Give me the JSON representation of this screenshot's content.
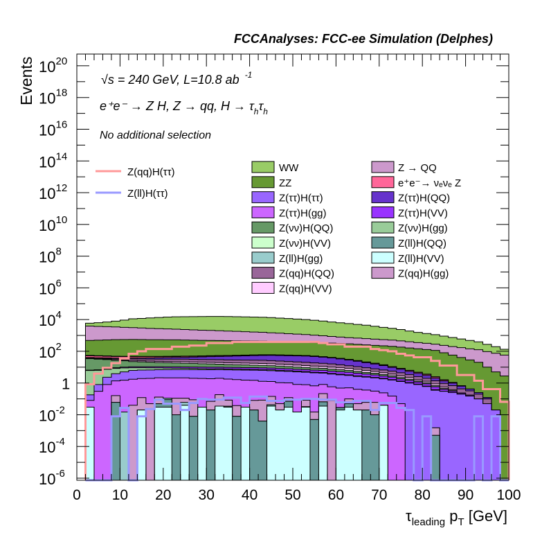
{
  "header": {
    "title": "FCCAnalyses: FCC-ee Simulation (Delphes)",
    "energy_line": "√s = 240 GeV, L=10.8 ab",
    "energy_exp": "-1",
    "process_parts": [
      "e⁺e⁻ → Z H, Z  → qq, H  → τ",
      "h",
      "τ",
      "h"
    ],
    "selection": "No additional selection"
  },
  "chart_data": {
    "type": "bar",
    "subtype": "stacked-histogram-log",
    "title": "FCCAnalyses: FCC-ee Simulation (Delphes)",
    "xlabel": {
      "main1": "τ",
      "sub1": "leading",
      "main2": " p",
      "sub2": "T",
      "unit": " [GeV]"
    },
    "ylabel": "Events",
    "xlim": [
      0,
      100
    ],
    "ylim_log10": [
      -6.13,
      20.74
    ],
    "yscale": "log",
    "bin_start": 2,
    "bin_width": 2,
    "xticks": [
      "0",
      "10",
      "20",
      "30",
      "40",
      "50",
      "60",
      "70",
      "80",
      "90",
      "100"
    ],
    "yticks": [
      {
        "base": "10",
        "exp": "20",
        "log": 20
      },
      {
        "base": "10",
        "exp": "18",
        "log": 18
      },
      {
        "base": "10",
        "exp": "16",
        "log": 16
      },
      {
        "base": "10",
        "exp": "14",
        "log": 14
      },
      {
        "base": "10",
        "exp": "12",
        "log": 12
      },
      {
        "base": "10",
        "exp": "10",
        "log": 10
      },
      {
        "base": "10",
        "exp": "8",
        "log": 8
      },
      {
        "base": "10",
        "exp": "6",
        "log": 6
      },
      {
        "base": "10",
        "exp": "4",
        "log": 4
      },
      {
        "base": "10",
        "exp": "2",
        "log": 2
      },
      {
        "base": "1",
        "exp": "",
        "log": 0
      },
      {
        "base": "10",
        "exp": "-2",
        "log": -2
      },
      {
        "base": "10",
        "exp": "-4",
        "log": -4
      },
      {
        "base": "10",
        "exp": "-6",
        "log": -6
      }
    ],
    "stack": [
      {
        "name": "Z(ll)H(VV)",
        "color": "#ccffff",
        "values": [
          0.03,
          0,
          0,
          0,
          0,
          0,
          0.02,
          0,
          0.03,
          0.03,
          0,
          0.04,
          0,
          0.03,
          0,
          0.035,
          0.03,
          0,
          0.03,
          0,
          0,
          0.035,
          0.02,
          0.03,
          0.015,
          0.03,
          0,
          0.035,
          0,
          0.02,
          0.03,
          0.02,
          0,
          0,
          0.04,
          0,
          0,
          0,
          0,
          0,
          0,
          0,
          0,
          0,
          0,
          0,
          0,
          0,
          0
        ]
      },
      {
        "name": "Z(ll)H(QQ)",
        "color": "#669999",
        "values": [
          0,
          0,
          0,
          0.06,
          0,
          0,
          0,
          0,
          0.02,
          0.06,
          0.01,
          0,
          0.008,
          0,
          0.02,
          0,
          0.004,
          0.008,
          0,
          0.02,
          0.004,
          0.008,
          0,
          0.04,
          0,
          0.002,
          0.005,
          0.03,
          0,
          0.008,
          0.02,
          0,
          0.02,
          0.01,
          0,
          0,
          0,
          0,
          0,
          0,
          0.0005,
          0,
          0,
          0,
          0,
          0,
          0,
          0,
          0
        ]
      },
      {
        "name": "Z(ll)H(gg)",
        "color": "#99cccc",
        "values": [
          0,
          0,
          0,
          0,
          0.015,
          0,
          0,
          0,
          0,
          0.02,
          0,
          0.02,
          0,
          0,
          0,
          0,
          0,
          0,
          0,
          0,
          0,
          0,
          0,
          0,
          0,
          0,
          0,
          0,
          0,
          0,
          0,
          0,
          0,
          0,
          0,
          0,
          0,
          0,
          0,
          0,
          0,
          0,
          0,
          0,
          0,
          0,
          0,
          0,
          0
        ]
      },
      {
        "name": "Z(qq)H(gg)",
        "color": "#cc99cc",
        "values": [
          0,
          0,
          0,
          0.1,
          0,
          0.04,
          0.1,
          0.05,
          0.08,
          0,
          0.1,
          0.05,
          0.08,
          0,
          0.05,
          0.15,
          0.05,
          0.03,
          0,
          0.06,
          0.08,
          0.1,
          0.03,
          0.05,
          0,
          0.05,
          0.01,
          0.15,
          0.08,
          0,
          0.05,
          0.03,
          0.04,
          0.05,
          0,
          0,
          0,
          0,
          0,
          0,
          0.001,
          0,
          0,
          0,
          0,
          0,
          0,
          0,
          0
        ]
      },
      {
        "name": "Z(ττ)H(gg)",
        "color": "#cc66ff",
        "values": [
          0.05,
          0.3,
          0.8,
          1.2,
          1.5,
          1.7,
          1.8,
          1.9,
          2,
          2,
          2,
          2,
          1.9,
          1.9,
          1.8,
          1.8,
          1.7,
          1.6,
          1.5,
          1.4,
          1.2,
          1.1,
          1,
          0.9,
          0.8,
          0.7,
          0.65,
          0.6,
          0.5,
          0.45,
          0.4,
          0.35,
          0.3,
          0.25,
          0.2,
          0.15,
          0.05,
          0,
          0,
          0,
          0,
          0,
          0,
          0,
          0,
          0,
          0,
          0,
          0
        ]
      },
      {
        "name": "Z(ττ)H(ττ)",
        "color": "#9966ff",
        "values": [
          0.1,
          0.5,
          1.5,
          2.5,
          3.5,
          4.5,
          4.6,
          4.7,
          4.8,
          4.9,
          5,
          5,
          5,
          5,
          5,
          5,
          5,
          5,
          5,
          5,
          5,
          4.8,
          4.6,
          4.4,
          4.2,
          4,
          3.7,
          3.4,
          3.1,
          2.8,
          2.5,
          2.2,
          2,
          1.8,
          1.6,
          1.4,
          1.2,
          1,
          0.8,
          0.6,
          0.35,
          0.3,
          0.25,
          0.2,
          0.15,
          0.1,
          0.05,
          0.02,
          0
        ]
      },
      {
        "name": "Z(νν)H(gg)",
        "color": "#99cc99",
        "values": [
          6,
          5.5,
          5,
          4.5,
          4,
          3,
          2.7,
          2.4,
          2.1,
          1.8,
          1.5,
          1.4,
          1.3,
          1.2,
          1.1,
          1,
          0.95,
          0.9,
          0.85,
          0.8,
          0.8,
          0.75,
          0.7,
          0.6,
          0.55,
          0.5,
          0.45,
          0.4,
          0.35,
          0.3,
          0.3,
          0.25,
          0.2,
          0.15,
          0.12,
          0.1,
          0.08,
          0.06,
          0.05,
          0.04,
          0.03,
          0,
          0,
          0,
          0,
          0,
          0,
          0,
          0
        ]
      },
      {
        "name": "Z(ττ)H(VV)",
        "color": "#9933ff",
        "values": [
          0.3,
          0.5,
          0.7,
          0.9,
          1.1,
          1.3,
          1.4,
          1.5,
          1.6,
          1.7,
          1.8,
          1.8,
          1.9,
          1.9,
          2,
          2,
          2,
          2,
          2,
          2,
          2,
          2,
          1.9,
          1.9,
          1.8,
          1.8,
          1.7,
          1.7,
          1.6,
          1.6,
          1.5,
          1.3,
          1.1,
          1,
          0.8,
          0.7,
          0.5,
          0.4,
          0.3,
          0.25,
          0.2,
          0.1,
          0.05,
          0.03,
          0.02,
          0,
          0,
          0,
          0
        ]
      },
      {
        "name": "Z(νν)H(QQ)",
        "color": "#669966",
        "values": [
          28,
          25,
          22,
          18,
          15,
          12,
          11,
          10,
          9,
          8.5,
          8,
          7.5,
          7,
          6.5,
          6,
          5.5,
          5,
          4.8,
          4.5,
          4.2,
          4,
          3.7,
          3.4,
          3.1,
          2.8,
          2.5,
          2.3,
          2.1,
          1.9,
          1.7,
          1.5,
          1.3,
          1.1,
          0.9,
          0.7,
          0.5,
          0.4,
          0.3,
          0.2,
          0.15,
          0.1,
          0.05,
          0.03,
          0,
          0,
          0,
          0,
          0,
          0
        ]
      },
      {
        "name": "Z(qq)H(VV)",
        "color": "#ffccff",
        "values": [
          2,
          2.3,
          2.6,
          2.9,
          3.2,
          3.5,
          3.6,
          3.7,
          3.8,
          3.9,
          4,
          4,
          4,
          4,
          4,
          4,
          4,
          4,
          4,
          4,
          4,
          3.8,
          3.6,
          3.4,
          3.2,
          3,
          2.8,
          2.6,
          2.4,
          2.2,
          2,
          1.8,
          1.5,
          1.2,
          1,
          0.8,
          0.6,
          0.5,
          0.3,
          0.25,
          0.2,
          0.1,
          0.05,
          0,
          0,
          0,
          0,
          0,
          0
        ]
      },
      {
        "name": "Z(qq)H(QQ)",
        "color": "#996699",
        "values": [
          3,
          3.5,
          4,
          5,
          6,
          7,
          7.5,
          8,
          8.5,
          9,
          9.5,
          10,
          10,
          10,
          10,
          10,
          10,
          10,
          10,
          10,
          10,
          9.5,
          9,
          8.5,
          8,
          7.5,
          7,
          6.5,
          6,
          5,
          4,
          3.5,
          3,
          2.5,
          2.2,
          2,
          1.6,
          1.2,
          0.9,
          0.7,
          0.5,
          0.4,
          0.3,
          0.2,
          0.15,
          0.1,
          0.05,
          0,
          0
        ]
      },
      {
        "name": "Z(ττ)H(QQ)",
        "color": "#6633cc",
        "values": [
          1,
          1.5,
          2,
          2.5,
          3,
          4,
          5,
          6,
          7,
          8,
          9,
          10,
          12,
          14,
          16,
          18,
          20,
          22,
          24,
          26,
          28,
          30,
          30,
          30,
          30,
          30,
          28,
          25,
          22,
          19,
          16,
          13,
          10,
          8,
          6,
          4,
          3,
          2,
          1.5,
          1,
          0.6,
          0.4,
          0.3,
          0.2,
          0.1,
          0.05,
          0.02,
          0,
          0
        ]
      },
      {
        "name": "e⁺e⁻→ νₑνₑ Z",
        "color": "#ff6699",
        "values": [
          12,
          11,
          10,
          9,
          8.5,
          8,
          7.5,
          7,
          6.5,
          6.2,
          6,
          5.8,
          5.5,
          5.2,
          5,
          4.8,
          4.6,
          4.4,
          4.2,
          4.1,
          4,
          3.8,
          3.6,
          3.4,
          3.2,
          3,
          2.8,
          2.6,
          2.4,
          2.2,
          2,
          1.8,
          1.6,
          1.4,
          1.2,
          1,
          0.8,
          0.7,
          0.6,
          0.5,
          0.4,
          0.2,
          0.1,
          0.05,
          0,
          0,
          0,
          0,
          0
        ]
      },
      {
        "name": "Z(νν)H(VV)",
        "color": "#ccffcc",
        "values": [
          3,
          2.9,
          2.8,
          2.7,
          2.6,
          2.5,
          2.4,
          2.3,
          2.2,
          2.1,
          2,
          1.95,
          1.9,
          1.85,
          1.8,
          1.75,
          1.7,
          1.65,
          1.6,
          1.55,
          1.5,
          1.4,
          1.3,
          1.2,
          1.1,
          1,
          0.9,
          0.8,
          0.7,
          0.6,
          0.5,
          0.45,
          0.4,
          0.35,
          0.3,
          0.25,
          0.2,
          0.18,
          0.15,
          0.12,
          0.1,
          0.05,
          0,
          0,
          0,
          0,
          0,
          0,
          0
        ]
      },
      {
        "name": "ZZ",
        "color": "#669933",
        "values": [
          430,
          450,
          470,
          490,
          500,
          510,
          500,
          490,
          485,
          480,
          477,
          465,
          450,
          440,
          430,
          422,
          410,
          400,
          390,
          385,
          376,
          360,
          345,
          330,
          320,
          315,
          305,
          295,
          285,
          275,
          266,
          250,
          235,
          220,
          208,
          196,
          175,
          155,
          140,
          125,
          111,
          80,
          57,
          40,
          28,
          20,
          10,
          5,
          2.8
        ]
      },
      {
        "name": "Z → QQ",
        "color": "#cc99cc",
        "values": [
          3400,
          3200,
          3050,
          2900,
          2700,
          2560,
          2400,
          2250,
          2150,
          2050,
          1950,
          1850,
          1750,
          1650,
          1600,
          1500,
          1420,
          1350,
          1280,
          1200,
          1140,
          1050,
          980,
          900,
          830,
          770,
          690,
          610,
          540,
          480,
          430,
          400,
          370,
          350,
          320,
          300,
          270,
          240,
          210,
          190,
          170,
          155,
          140,
          130,
          115,
          106,
          85,
          70,
          55
        ]
      },
      {
        "name": "WW",
        "color": "#99cc66",
        "values": [
          2000,
          2650,
          3500,
          4600,
          6100,
          8100,
          8800,
          9900,
          10800,
          11800,
          12600,
          12800,
          13100,
          13400,
          13600,
          13800,
          13600,
          13300,
          13000,
          12800,
          12500,
          11900,
          11000,
          10300,
          9600,
          8900,
          8000,
          7100,
          6200,
          5500,
          4900,
          4300,
          3800,
          3200,
          2700,
          2300,
          1900,
          1500,
          1200,
          1000,
          840,
          670,
          540,
          430,
          340,
          270,
          180,
          120,
          77
        ]
      }
    ],
    "lines": [
      {
        "name": "Z(qq)H(ττ)",
        "color": "#ff9999",
        "values": [
          0.83,
          3.9,
          9.1,
          18,
          35,
          70,
          100,
          140,
          140,
          140,
          195,
          195,
          230,
          230,
          330,
          330,
          330,
          390,
          390,
          390,
          390,
          390,
          390,
          390,
          390,
          390,
          390,
          330,
          275,
          275,
          195,
          195,
          195,
          140,
          118,
          100,
          70,
          55,
          42,
          42,
          25,
          12.6,
          12.6,
          3.2,
          3.2,
          1.4,
          0.41,
          0.41,
          0.065
        ]
      },
      {
        "name": "Z(ll)H(ττ)",
        "color": "#9999ff",
        "values": [
          0,
          0,
          0,
          0.008,
          0.027,
          0,
          0.008,
          0.023,
          0.09,
          0.05,
          0.05,
          0.02,
          0.055,
          0.1,
          0.09,
          0.09,
          0.12,
          0.12,
          0.055,
          0.14,
          0.14,
          0.075,
          0.075,
          0.09,
          0.09,
          0.1,
          0.1,
          0.09,
          0.09,
          0.06,
          0.06,
          0.075,
          0.075,
          0.02,
          0.055,
          0.055,
          0.027,
          0.02,
          0,
          0.008,
          0,
          0,
          0,
          0,
          0,
          0.008,
          0,
          0.008,
          0
        ]
      }
    ]
  },
  "legend": {
    "lines": [
      {
        "label": "Z(qq)H(ττ)",
        "color": "#ff9999"
      },
      {
        "label": "Z(ll)H(ττ)",
        "color": "#9999ff"
      }
    ],
    "col1": [
      {
        "label": "WW",
        "color": "#99cc66"
      },
      {
        "label": "ZZ",
        "color": "#669933"
      },
      {
        "label": "Z(ττ)H(ττ)",
        "color": "#9966ff"
      },
      {
        "label": "Z(ττ)H(gg)",
        "color": "#cc66ff"
      },
      {
        "label": "Z(νν)H(QQ)",
        "color": "#669966"
      },
      {
        "label": "Z(νν)H(VV)",
        "color": "#ccffcc"
      },
      {
        "label": "Z(ll)H(gg)",
        "color": "#99cccc"
      },
      {
        "label": "Z(qq)H(QQ)",
        "color": "#996699"
      },
      {
        "label": "Z(qq)H(VV)",
        "color": "#ffccff"
      }
    ],
    "col2": [
      {
        "label": "Z → QQ",
        "color": "#cc99cc"
      },
      {
        "label": "e⁺e⁻→ νₑνₑ Z",
        "color": "#ff6699"
      },
      {
        "label": "Z(ττ)H(QQ)",
        "color": "#6633cc"
      },
      {
        "label": "Z(ττ)H(VV)",
        "color": "#9933ff"
      },
      {
        "label": "Z(νν)H(gg)",
        "color": "#99cc99"
      },
      {
        "label": "Z(ll)H(QQ)",
        "color": "#669999"
      },
      {
        "label": "Z(ll)H(VV)",
        "color": "#ccffff"
      },
      {
        "label": "Z(qq)H(gg)",
        "color": "#cc99cc"
      }
    ]
  }
}
